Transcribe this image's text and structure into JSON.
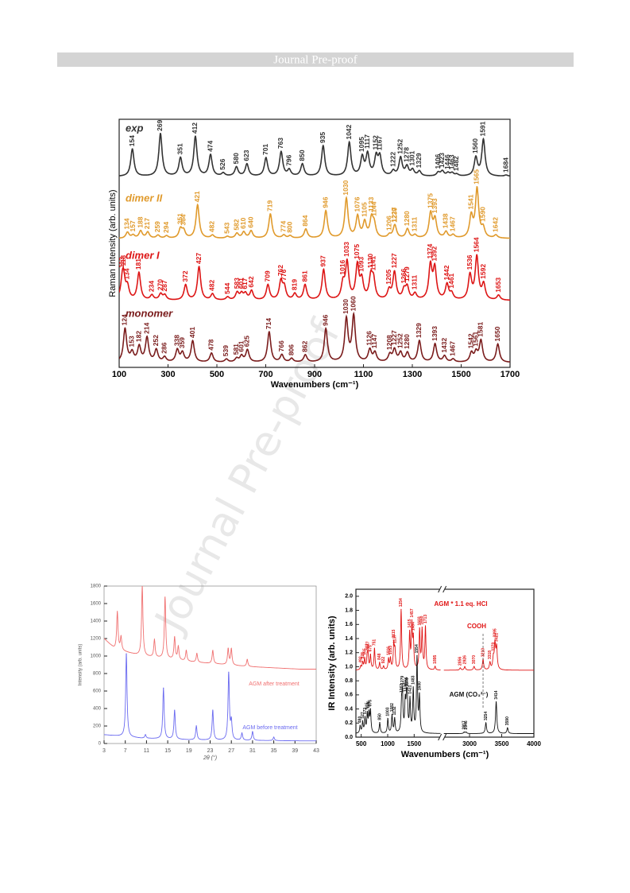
{
  "header": {
    "title": "Journal Pre-proof"
  },
  "watermark": "Journal Pre-proof",
  "chart_data": [
    {
      "type": "spectrum",
      "stacked": true,
      "peak_labels": true,
      "xlabel": "Wavenumbers (cm⁻¹)",
      "ylabel": "Raman Intensity (arb. units)",
      "xlim": [
        100,
        1700
      ],
      "xticks": [
        100,
        300,
        500,
        700,
        900,
        1100,
        1300,
        1500,
        1700
      ],
      "series": [
        {
          "name": "exp",
          "color": "#333333",
          "peaks": [
            154,
            269,
            351,
            412,
            474,
            526,
            580,
            623,
            701,
            763,
            796,
            850,
            935,
            1042,
            1095,
            1117,
            1152,
            1167,
            1222,
            1252,
            1278,
            1301,
            1329,
            1406,
            1423,
            1446,
            1463,
            1482,
            1560,
            1591,
            1684
          ],
          "heights": [
            0.45,
            0.7,
            0.3,
            0.65,
            0.35,
            0.05,
            0.15,
            0.2,
            0.3,
            0.4,
            0.1,
            0.2,
            0.5,
            0.55,
            0.3,
            0.35,
            0.3,
            0.3,
            0.08,
            0.3,
            0.15,
            0.1,
            0.08,
            0.06,
            0.08,
            0.05,
            0.05,
            0.03,
            0.3,
            0.6,
            0.02
          ]
        },
        {
          "name": "dimer II",
          "color": "#e09a2c",
          "peaks": [
            134,
            157,
            188,
            217,
            259,
            294,
            351,
            364,
            421,
            482,
            543,
            582,
            610,
            640,
            719,
            774,
            800,
            864,
            946,
            1030,
            1076,
            1105,
            1133,
            1144,
            1206,
            1227,
            1230,
            1280,
            1311,
            1375,
            1393,
            1438,
            1467,
            1541,
            1565,
            1590,
            1642
          ],
          "heights": [
            0.1,
            0.05,
            0.12,
            0.1,
            0.05,
            0.04,
            0.15,
            0.12,
            0.55,
            0.05,
            0.03,
            0.08,
            0.1,
            0.12,
            0.4,
            0.05,
            0.04,
            0.15,
            0.45,
            0.65,
            0.35,
            0.25,
            0.3,
            0.2,
            0.05,
            0.12,
            0.1,
            0.15,
            0.05,
            0.4,
            0.3,
            0.1,
            0.05,
            0.35,
            0.8,
            0.15,
            0.05
          ]
        },
        {
          "name": "dimer I",
          "color": "#dd1515",
          "peaks": [
            113,
            118,
            134,
            181,
            234,
            270,
            287,
            372,
            427,
            482,
            544,
            583,
            601,
            617,
            642,
            709,
            762,
            776,
            819,
            861,
            937,
            1016,
            1033,
            1075,
            1093,
            1130,
            1141,
            1205,
            1227,
            1266,
            1279,
            1311,
            1374,
            1392,
            1442,
            1461,
            1536,
            1564,
            1592,
            1653
          ],
          "heights": [
            0.25,
            0.3,
            0.2,
            0.45,
            0.08,
            0.1,
            0.08,
            0.25,
            0.55,
            0.1,
            0.05,
            0.12,
            0.1,
            0.1,
            0.15,
            0.25,
            0.3,
            0.2,
            0.1,
            0.25,
            0.5,
            0.25,
            0.6,
            0.55,
            0.3,
            0.35,
            0.3,
            0.15,
            0.45,
            0.15,
            0.2,
            0.1,
            0.55,
            0.5,
            0.25,
            0.1,
            0.4,
            0.7,
            0.25,
            0.08
          ]
        },
        {
          "name": "monomer",
          "color": "#7a1c1c",
          "peaks": [
            124,
            153,
            182,
            214,
            252,
            286,
            338,
            359,
            401,
            478,
            539,
            581,
            601,
            625,
            714,
            766,
            806,
            862,
            946,
            1030,
            1060,
            1126,
            1147,
            1208,
            1227,
            1252,
            1280,
            1329,
            1393,
            1432,
            1467,
            1542,
            1561,
            1581,
            1650
          ],
          "heights": [
            0.55,
            0.15,
            0.25,
            0.4,
            0.2,
            0.08,
            0.2,
            0.15,
            0.35,
            0.15,
            0.05,
            0.06,
            0.1,
            0.2,
            0.5,
            0.12,
            0.06,
            0.12,
            0.55,
            0.7,
            0.75,
            0.2,
            0.15,
            0.12,
            0.2,
            0.15,
            0.15,
            0.35,
            0.3,
            0.1,
            0.05,
            0.15,
            0.15,
            0.35,
            0.3
          ]
        }
      ]
    },
    {
      "type": "spectrum",
      "stacked": false,
      "peak_labels": false,
      "xlabel": "2θ (°)",
      "ylabel": "Intensity (arb. units)",
      "xlim": [
        3,
        43
      ],
      "xticks": [
        3,
        7,
        11,
        15,
        19,
        23,
        27,
        31,
        35,
        39,
        43
      ],
      "ylim": [
        0,
        1800
      ],
      "yticks": [
        0,
        200,
        400,
        600,
        800,
        1000,
        1200,
        1400,
        1600,
        1800
      ],
      "series": [
        {
          "name": "AGM after treatment",
          "color": "#f07070",
          "peaks": [
            5.5,
            6.2,
            10.2,
            12.5,
            14.5,
            16.3,
            17,
            18.5,
            20.5,
            23.5,
            26.4,
            27,
            30
          ],
          "heights": [
            430,
            150,
            800,
            200,
            700,
            250,
            150,
            120,
            100,
            150,
            180,
            180,
            80
          ],
          "baseline_x": [
            3,
            5,
            10,
            20,
            30,
            40
          ],
          "baseline": [
            1200,
            1080,
            1000,
            930,
            880,
            850
          ]
        },
        {
          "name": "AGM before treatment",
          "color": "#6a6af0",
          "peaks": [
            7.2,
            10.8,
            14.2,
            16.3,
            20.4,
            23.5,
            26.5,
            27,
            29,
            31,
            35
          ],
          "heights": [
            950,
            40,
            580,
            330,
            160,
            340,
            760,
            200,
            80,
            100,
            40
          ],
          "baseline_x": [
            3,
            10,
            20,
            40
          ],
          "baseline": [
            100,
            60,
            40,
            30
          ]
        }
      ]
    },
    {
      "type": "spectrum",
      "stacked": false,
      "peak_labels": true,
      "xlabel": "Wavenumbers (cm⁻¹)",
      "ylabel": "IR Intensity (arb. units)",
      "xlim": [
        400,
        4000
      ],
      "xbreak": [
        2000,
        2600
      ],
      "xticks": [
        500,
        1000,
        1500,
        3000,
        3500,
        4000
      ],
      "ylim": [
        0,
        2.1
      ],
      "yticks": [
        {
          "value": 0,
          "label": "0.0"
        },
        0.2,
        0.4,
        0.6,
        0.8,
        {
          "value": 1,
          "label": "1.0"
        },
        1.2,
        1.4,
        1.6,
        1.8,
        {
          "value": 2,
          "label": "2.0"
        }
      ],
      "annotation": {
        "text": "COOH",
        "x": 3210
      },
      "series": [
        {
          "name": "AGM * 1.1 eq. HCl",
          "color": "#e01515",
          "peaks": [
            492,
            528,
            565,
            612,
            627,
            675,
            751,
            848,
            922,
            1016,
            1053,
            1115,
            1137,
            1254,
            1415,
            1457,
            1484,
            1603,
            1650,
            1713,
            1895,
            2856,
            2926,
            3070,
            3210,
            3318,
            3370,
            3395,
            3421
          ],
          "heights": [
            0.05,
            0.1,
            0.15,
            0.15,
            0.2,
            0.2,
            0.3,
            0.1,
            0.05,
            0.15,
            0.15,
            0.35,
            0.25,
            0.85,
            0.5,
            0.6,
            0.4,
            0.55,
            0.55,
            0.6,
            0.05,
            0.03,
            0.05,
            0.05,
            0.15,
            0.1,
            0.15,
            0.35,
            0.3
          ],
          "baseline_x": [
            400,
            4000
          ],
          "baseline": [
            0.95,
            0.95
          ]
        },
        {
          "name": "AGM (CO₃²⁻)",
          "color": "#111111",
          "peaks": [
            480,
            527,
            572,
            615,
            646,
            675,
            850,
            1003,
            1082,
            1132,
            1262,
            1279,
            1332,
            1356,
            1370,
            1421,
            1483,
            1554,
            1600,
            2917,
            2946,
            3254,
            3414,
            3590
          ],
          "heights": [
            0.1,
            0.15,
            0.2,
            0.25,
            0.25,
            0.3,
            0.15,
            0.2,
            0.25,
            0.2,
            0.35,
            0.5,
            0.4,
            0.35,
            0.4,
            0.45,
            0.6,
            1.05,
            0.5,
            0.02,
            0.02,
            0.15,
            0.45,
            0.08
          ],
          "baseline_x": [
            400,
            4000
          ],
          "baseline": [
            0.05,
            0.05
          ]
        }
      ]
    }
  ]
}
